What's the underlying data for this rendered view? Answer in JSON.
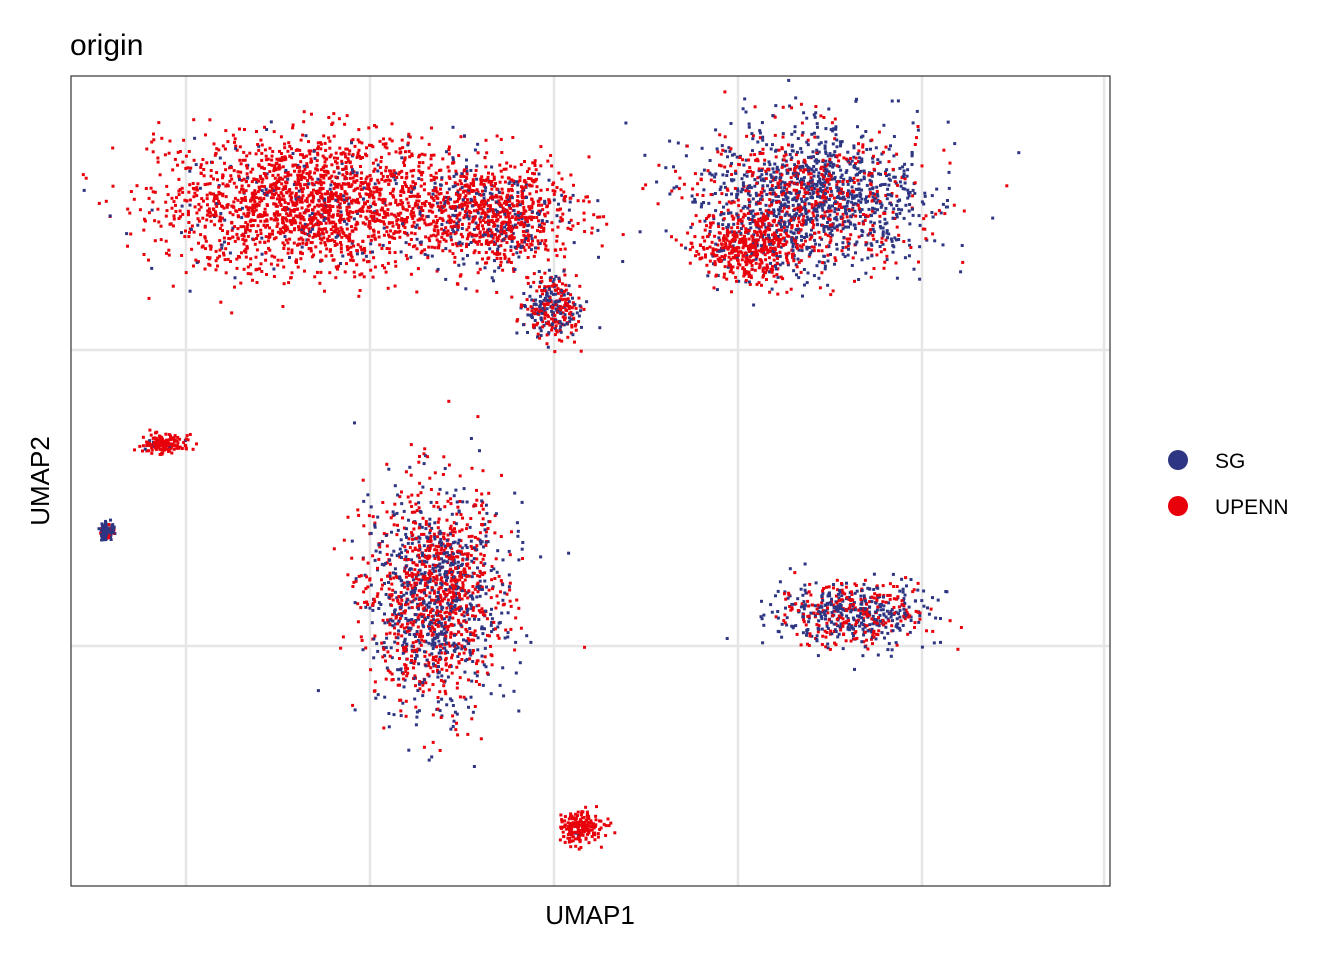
{
  "chart_data": {
    "type": "scatter",
    "title": "origin",
    "xlabel": "UMAP1",
    "ylabel": "UMAP2",
    "grid": true,
    "legend_position": "right",
    "series": [
      {
        "name": "SG",
        "color": "#2E3582"
      },
      {
        "name": "UPENN",
        "color": "#E8000B"
      }
    ],
    "clusters": [
      {
        "id": "top-left-large",
        "center": [
          -6.4,
          5.2
        ],
        "spread": [
          2.6,
          1.2
        ],
        "mix_sg": 0.08
      },
      {
        "id": "top-mid-bridge",
        "center": [
          -3.2,
          5.0
        ],
        "spread": [
          1.4,
          1.0
        ],
        "mix_sg": 0.25
      },
      {
        "id": "top-small-drop",
        "center": [
          -2.2,
          3.3
        ],
        "spread": [
          0.55,
          0.55
        ],
        "mix_sg": 0.45
      },
      {
        "id": "top-right-large",
        "center": [
          2.3,
          5.3
        ],
        "spread": [
          1.9,
          1.3
        ],
        "mix_sg": 0.65
      },
      {
        "id": "top-right-red-core",
        "center": [
          1.2,
          4.4
        ],
        "spread": [
          0.9,
          0.6
        ],
        "mix_sg": 0.1
      },
      {
        "id": "left-isolated",
        "center": [
          -8.9,
          0.8
        ],
        "spread": [
          0.35,
          0.18
        ],
        "mix_sg": 0.05
      },
      {
        "id": "far-left-dot",
        "center": [
          -9.9,
          -0.8
        ],
        "spread": [
          0.12,
          0.15
        ],
        "mix_sg": 0.8
      },
      {
        "id": "center-large",
        "center": [
          -4.2,
          -2.0
        ],
        "spread": [
          1.2,
          2.0
        ],
        "mix_sg": 0.45
      },
      {
        "id": "right-arc",
        "center": [
          3.0,
          -2.3
        ],
        "spread": [
          1.3,
          0.6
        ],
        "mix_sg": 0.55
      },
      {
        "id": "bottom-dot",
        "center": [
          -1.7,
          -6.2
        ],
        "spread": [
          0.4,
          0.3
        ],
        "mix_sg": 0.02
      }
    ],
    "xlim": [
      -10.5,
      7.5
    ],
    "ylim": [
      -7.3,
      7.5
    ]
  }
}
